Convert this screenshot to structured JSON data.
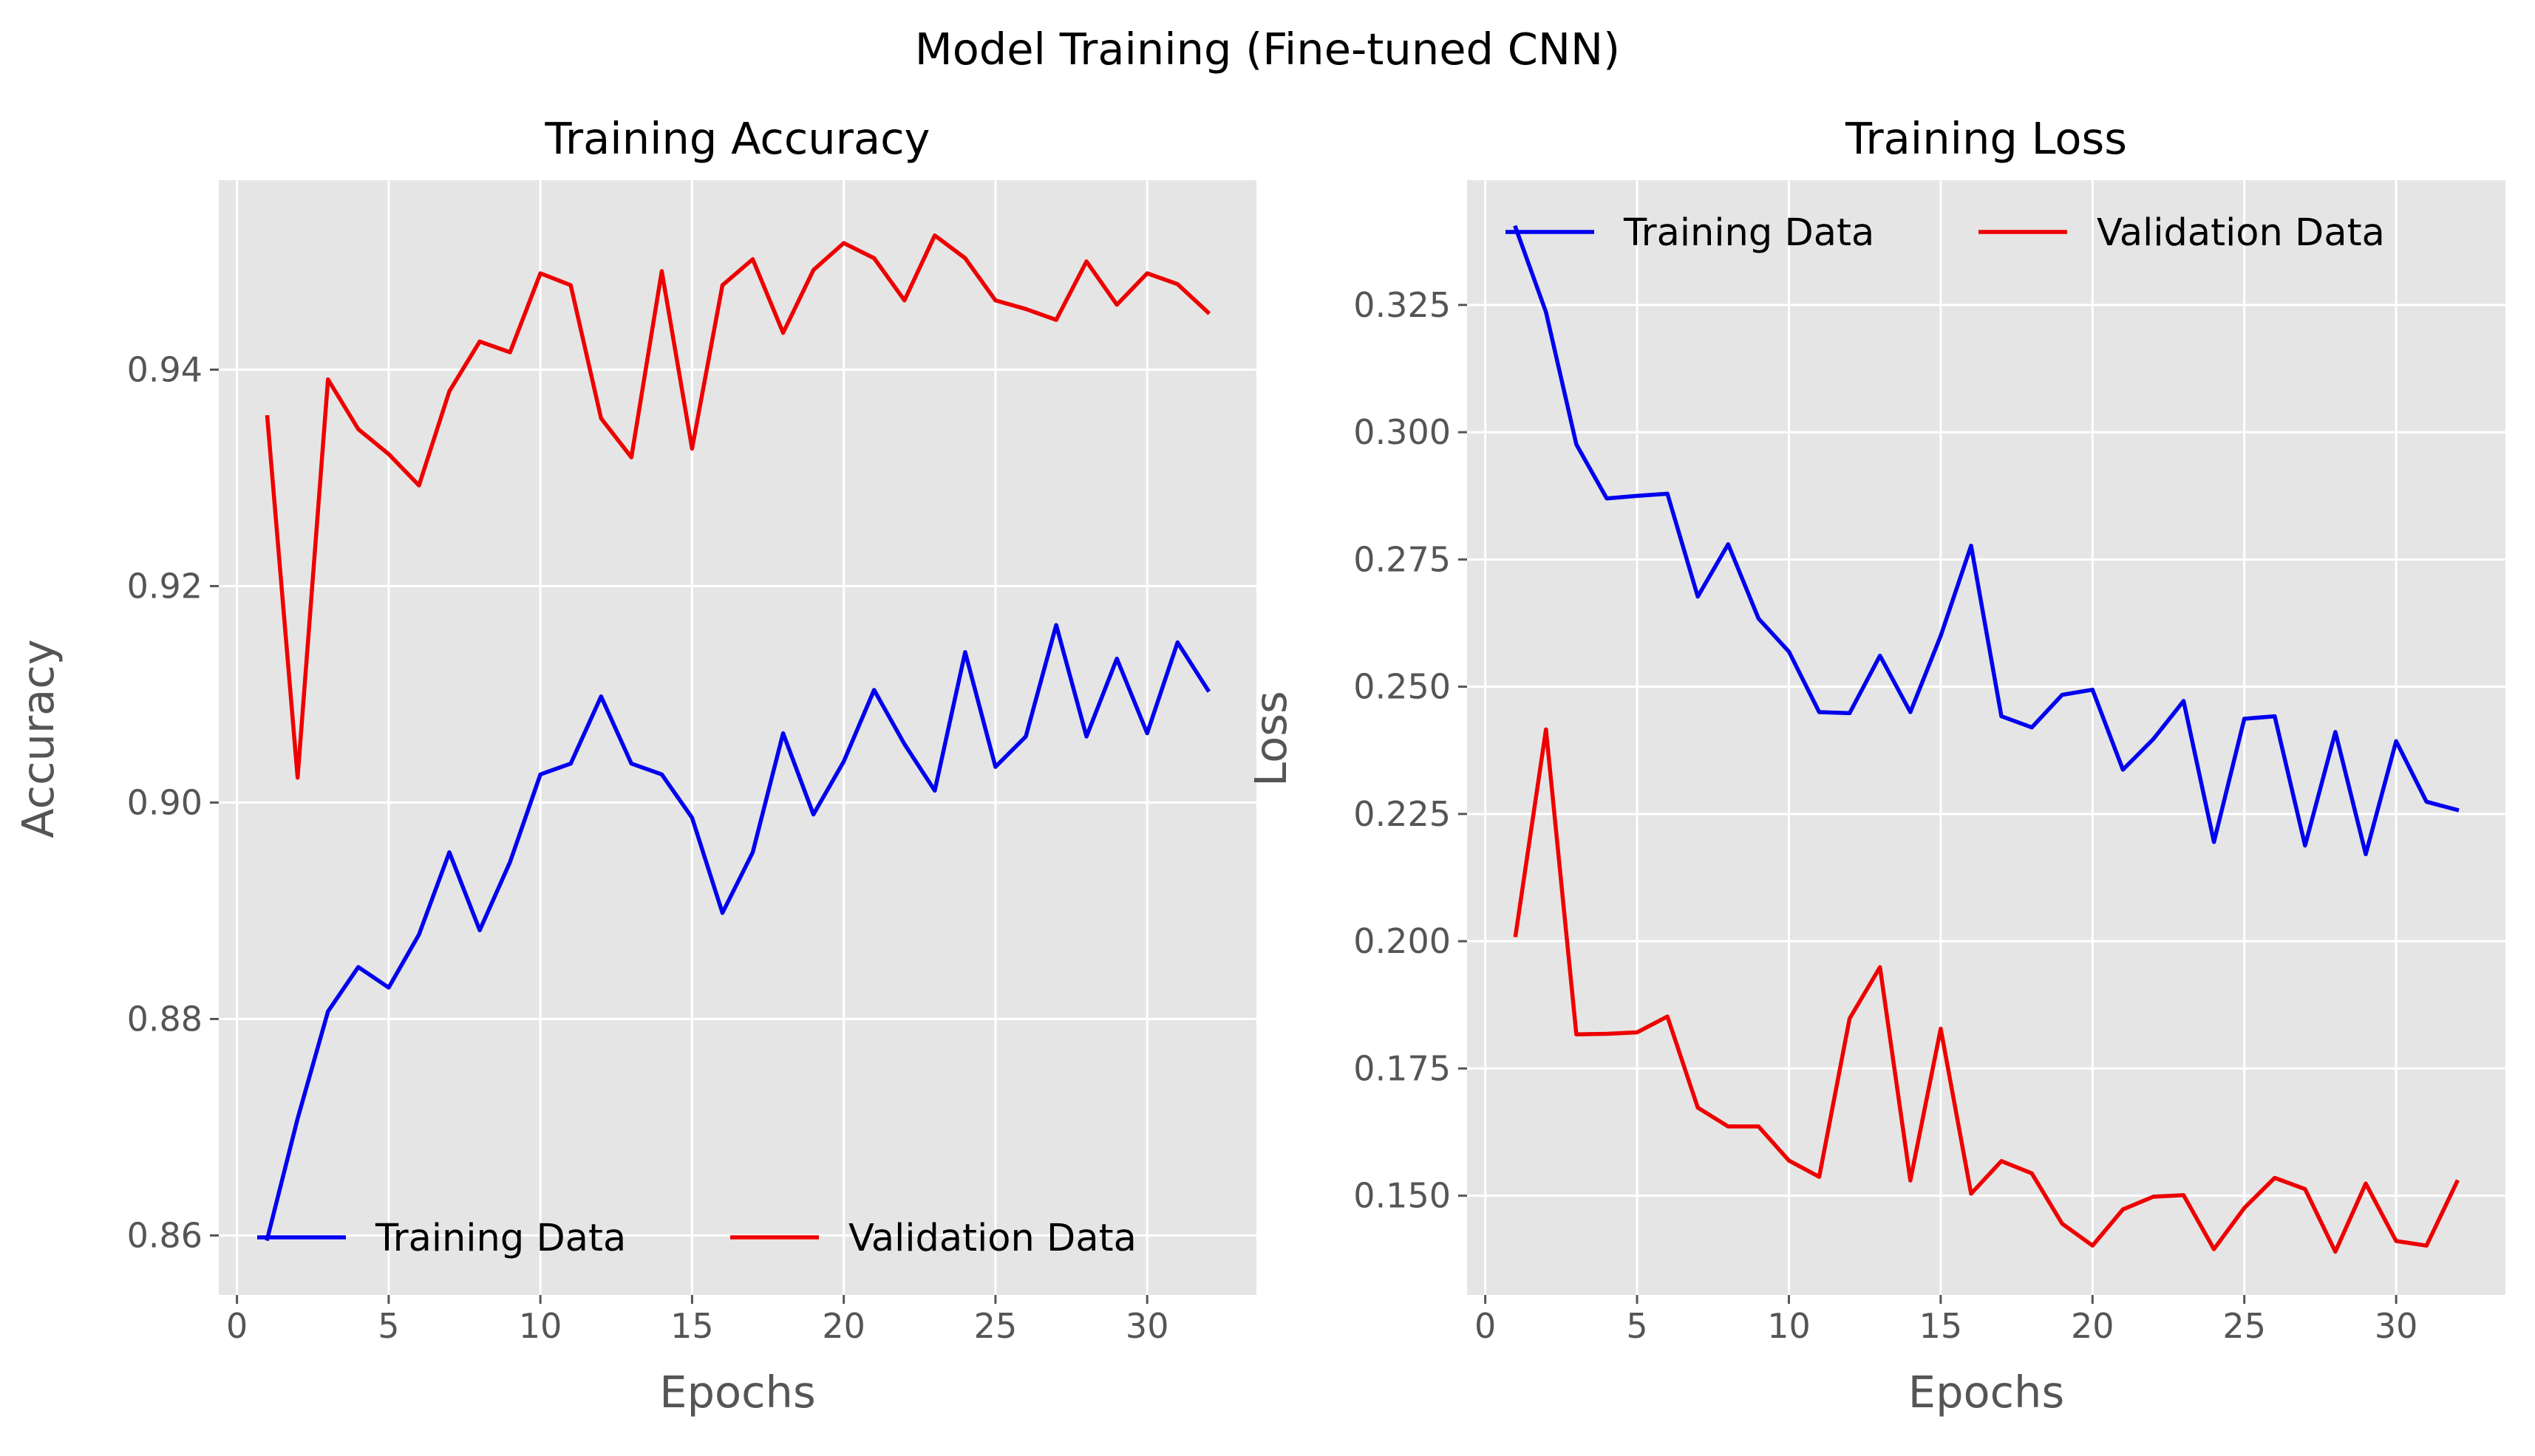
{
  "figure": {
    "suptitle": "Model Training (Fine-tuned CNN)"
  },
  "colors": {
    "panel_bg": "#e5e5e5",
    "grid": "#ffffff",
    "training": "#0000ee",
    "validation": "#ee0000",
    "tick_text": "#555555"
  },
  "chart_data": [
    {
      "type": "line",
      "title": "Training Accuracy",
      "xlabel": "Epochs",
      "ylabel": "Accuracy",
      "xlim": [
        -0.6,
        33.6
      ],
      "ylim": [
        0.8545,
        0.9575
      ],
      "xticks": [
        0,
        5,
        10,
        15,
        20,
        25,
        30
      ],
      "yticks": [
        0.86,
        0.88,
        0.9,
        0.92,
        0.94
      ],
      "ytick_labels": [
        "0.86",
        "0.88",
        "0.90",
        "0.92",
        "0.94"
      ],
      "grid": true,
      "legend_position": "lower-center",
      "x": [
        1,
        2,
        3,
        4,
        5,
        6,
        7,
        8,
        9,
        10,
        11,
        12,
        13,
        14,
        15,
        16,
        17,
        18,
        19,
        20,
        21,
        22,
        23,
        24,
        25,
        26,
        27,
        28,
        29,
        30,
        31,
        32
      ],
      "series": [
        {
          "name": "Training Data",
          "color": "#0000ee",
          "values": [
            0.8597,
            0.8708,
            0.8807,
            0.8848,
            0.8829,
            0.8878,
            0.8954,
            0.8882,
            0.8945,
            0.9026,
            0.9036,
            0.9098,
            0.9036,
            0.9026,
            0.8986,
            0.8898,
            0.8954,
            0.9064,
            0.8989,
            0.9038,
            0.9104,
            0.9054,
            0.9011,
            0.9139,
            0.9033,
            0.9061,
            0.9164,
            0.9061,
            0.9133,
            0.9064,
            0.9148,
            0.9104
          ]
        },
        {
          "name": "Validation Data",
          "color": "#ee0000",
          "values": [
            0.9356,
            0.9023,
            0.9391,
            0.9345,
            0.9322,
            0.9293,
            0.938,
            0.9426,
            0.9416,
            0.9489,
            0.9478,
            0.9355,
            0.9319,
            0.9491,
            0.9327,
            0.9478,
            0.9502,
            0.9434,
            0.9492,
            0.9517,
            0.9503,
            0.9464,
            0.9524,
            0.9503,
            0.9464,
            0.9456,
            0.9446,
            0.95,
            0.946,
            0.9489,
            0.9479,
            0.9453
          ]
        }
      ]
    },
    {
      "type": "line",
      "title": "Training Loss",
      "xlabel": "Epochs",
      "ylabel": "Loss",
      "xlim": [
        -0.6,
        33.6
      ],
      "ylim": [
        0.1305,
        0.3495
      ],
      "xticks": [
        0,
        5,
        10,
        15,
        20,
        25,
        30
      ],
      "yticks": [
        0.15,
        0.175,
        0.2,
        0.225,
        0.25,
        0.275,
        0.3,
        0.325
      ],
      "ytick_labels": [
        "0.150",
        "0.175",
        "0.200",
        "0.225",
        "0.250",
        "0.275",
        "0.300",
        "0.325"
      ],
      "grid": true,
      "legend_position": "upper-center",
      "x": [
        1,
        2,
        3,
        4,
        5,
        6,
        7,
        8,
        9,
        10,
        11,
        12,
        13,
        14,
        15,
        16,
        17,
        18,
        19,
        20,
        21,
        22,
        23,
        24,
        25,
        26,
        27,
        28,
        29,
        30,
        31,
        32
      ],
      "series": [
        {
          "name": "Training Data",
          "color": "#0000ee",
          "values": [
            0.3402,
            0.3236,
            0.2976,
            0.287,
            0.2875,
            0.2879,
            0.2677,
            0.278,
            0.2634,
            0.2569,
            0.245,
            0.2448,
            0.2561,
            0.245,
            0.26,
            0.2777,
            0.2442,
            0.242,
            0.2484,
            0.2494,
            0.2337,
            0.2397,
            0.2472,
            0.2195,
            0.2437,
            0.2442,
            0.2188,
            0.2411,
            0.2171,
            0.2393,
            0.2274,
            0.2258
          ]
        },
        {
          "name": "Validation Data",
          "color": "#ee0000",
          "values": [
            0.2012,
            0.2416,
            0.1817,
            0.1818,
            0.1821,
            0.1852,
            0.1673,
            0.1636,
            0.1636,
            0.1569,
            0.1537,
            0.1848,
            0.1949,
            0.153,
            0.1828,
            0.1504,
            0.1568,
            0.1544,
            0.1445,
            0.1402,
            0.1473,
            0.1498,
            0.1501,
            0.1395,
            0.1476,
            0.1535,
            0.1513,
            0.139,
            0.1524,
            0.1411,
            0.1402,
            0.1527
          ]
        }
      ]
    }
  ]
}
